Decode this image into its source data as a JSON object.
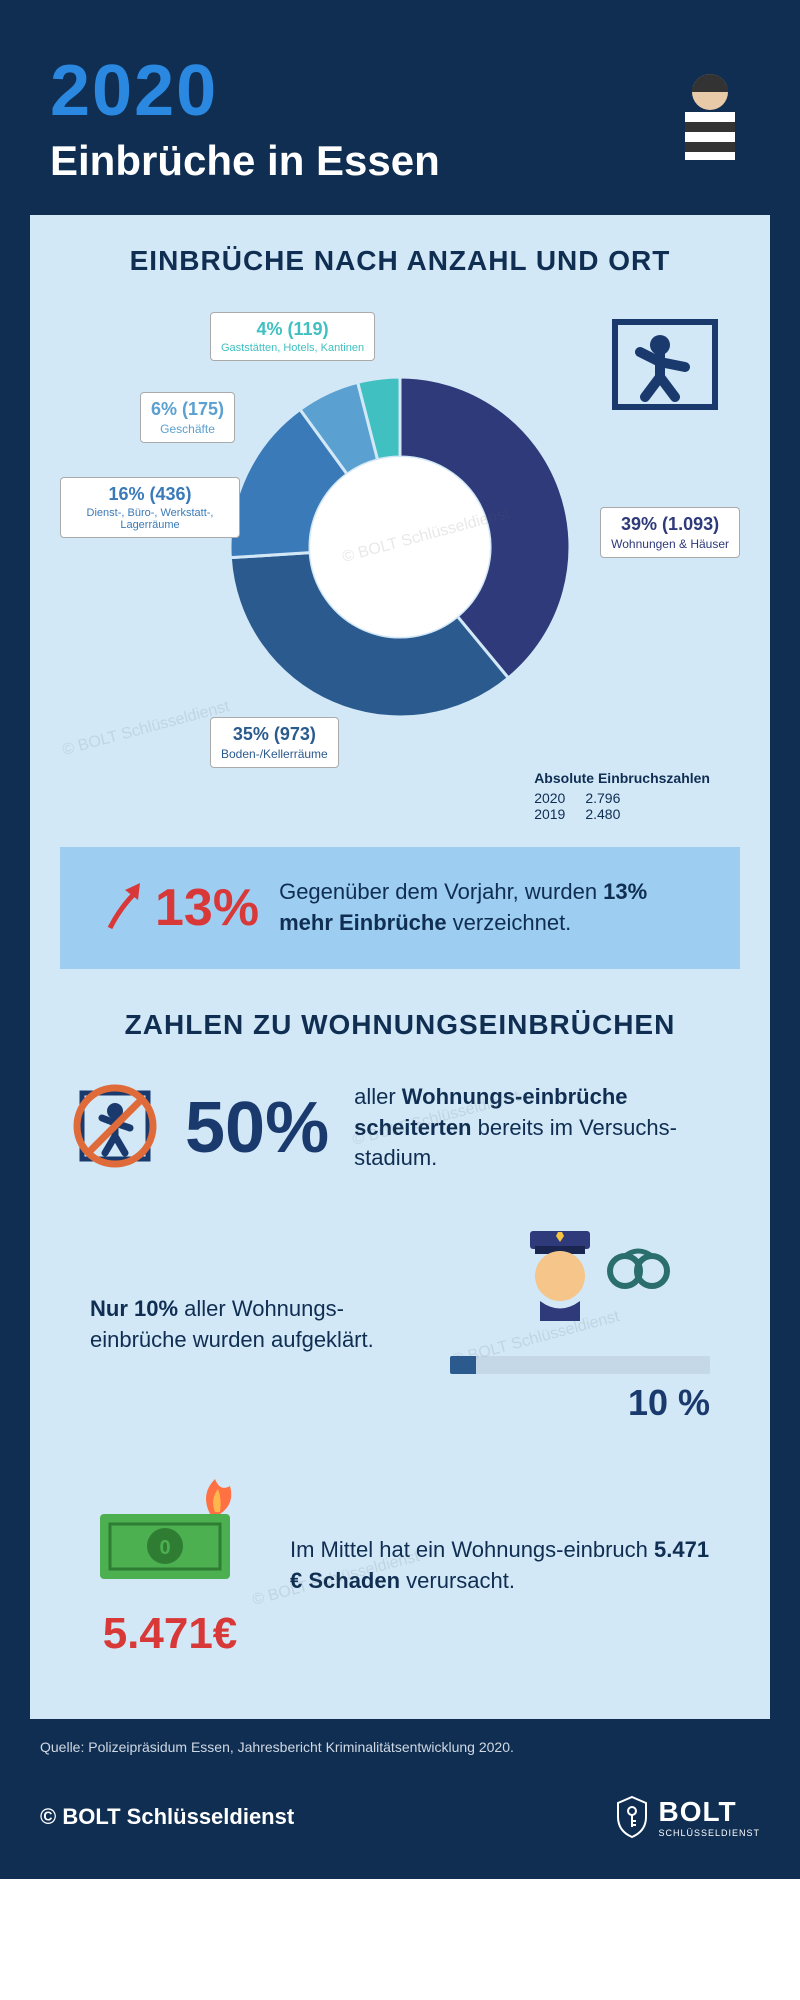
{
  "header": {
    "year": "2020",
    "title": "Einbrüche in Essen"
  },
  "section1": {
    "title": "EINBRÜCHE NACH ANZAHL UND ORT",
    "donut": {
      "type": "donut",
      "slices": [
        {
          "pct": 39,
          "count": "1.093",
          "label": "Wohnungen & Häuser",
          "color": "#2e3a7a",
          "text_color": "#2e3a7a"
        },
        {
          "pct": 35,
          "count": "973",
          "label": "Boden-/Kellerräume",
          "color": "#2a5a8e",
          "text_color": "#2a5a8e"
        },
        {
          "pct": 16,
          "count": "436",
          "label": "Dienst-, Büro-, Werkstatt-, Lagerräume",
          "color": "#3a7ab8",
          "text_color": "#3a7ab8"
        },
        {
          "pct": 6,
          "count": "175",
          "label": "Geschäfte",
          "color": "#5aa0d0",
          "text_color": "#5aa0d0"
        },
        {
          "pct": 4,
          "count": "119",
          "label": "Gaststätten, Hotels, Kantinen",
          "color": "#40c0c0",
          "text_color": "#40c0c0"
        }
      ],
      "inner_radius": 90,
      "outer_radius": 170,
      "center_bg": "#ffffff"
    },
    "absolute": {
      "title": "Absolute Einbruchszahlen",
      "rows": [
        {
          "year": "2020",
          "value": "2.796"
        },
        {
          "year": "2019",
          "value": "2.480"
        }
      ]
    }
  },
  "callout": {
    "pct": "13%",
    "text_pre": "Gegenüber dem Vorjahr, wurden ",
    "text_bold": "13% mehr Einbrüche",
    "text_post": " verzeichnet."
  },
  "section2": {
    "title": "ZAHLEN ZU WOHNUNGSEINBRÜCHEN",
    "stat50": {
      "pct": "50%",
      "text_pre": "aller ",
      "text_bold": "Wohnungs-einbrüche scheiterten",
      "text_post": " bereits im Versuchs-stadium."
    },
    "stat10": {
      "text_pre": "Nur 10%",
      "text_post": " aller Wohnungs-einbrüche wurden aufgeklärt.",
      "pct": "10 %",
      "bar_pct": 10,
      "bar_fill": "#2a5a8e",
      "bar_bg": "#c4d8e8"
    },
    "money": {
      "amount": "5.471€",
      "text_pre": "Im Mittel hat ein Wohnungs-einbruch ",
      "text_bold": "5.471 € Schaden",
      "text_post": " verursacht."
    }
  },
  "source": "Quelle: Polizeipräsidum Essen, Jahresbericht Kriminalitätsentwicklung 2020.",
  "footer": {
    "copyright": "© BOLT Schlüsseldienst",
    "logo_main": "BOLT",
    "logo_sub": "SCHLÜSSELDIENST"
  },
  "watermark": "© BOLT Schlüsseldienst",
  "colors": {
    "page_bg": "#0f2e52",
    "content_bg": "#d2e8f7",
    "accent_blue": "#2a88e0",
    "dark_navy": "#1a3a6e",
    "red": "#d93838"
  }
}
